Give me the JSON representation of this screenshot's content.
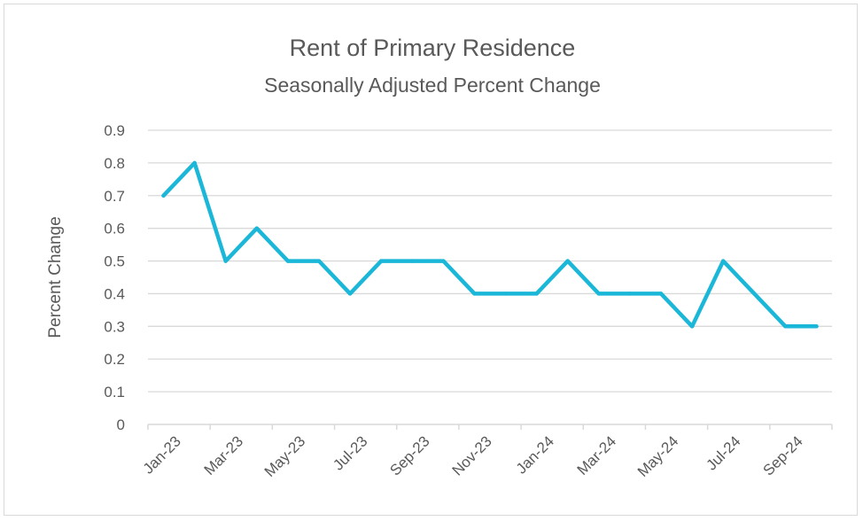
{
  "chart_data": {
    "type": "line",
    "title": "Rent of Primary Residence",
    "subtitle": "Seasonally Adjusted Percent Change",
    "xlabel": "",
    "ylabel": "Percent Change",
    "ylim": [
      0,
      0.9
    ],
    "yticks": [
      "0",
      "0.1",
      "0.2",
      "0.3",
      "0.4",
      "0.5",
      "0.6",
      "0.7",
      "0.8",
      "0.9"
    ],
    "x": [
      "Jan-23",
      "Feb-23",
      "Mar-23",
      "Apr-23",
      "May-23",
      "Jun-23",
      "Jul-23",
      "Aug-23",
      "Sep-23",
      "Oct-23",
      "Nov-23",
      "Dec-23",
      "Jan-24",
      "Feb-24",
      "Mar-24",
      "Apr-24",
      "May-24",
      "Jun-24",
      "Jul-24",
      "Aug-24",
      "Sep-24",
      "Oct-24"
    ],
    "xtick_labels": [
      "Jan-23",
      "Mar-23",
      "May-23",
      "Jul-23",
      "Sep-23",
      "Nov-23",
      "Jan-24",
      "Mar-24",
      "May-24",
      "Jul-24",
      "Sep-24"
    ],
    "series": [
      {
        "color": "#1ab7d8",
        "values": [
          0.7,
          0.8,
          0.5,
          0.6,
          0.5,
          0.5,
          0.4,
          0.5,
          0.5,
          0.5,
          0.4,
          0.4,
          0.4,
          0.5,
          0.4,
          0.4,
          0.4,
          0.3,
          0.5,
          0.4,
          0.3,
          0.3
        ]
      }
    ],
    "grid": true,
    "legend": "none"
  }
}
